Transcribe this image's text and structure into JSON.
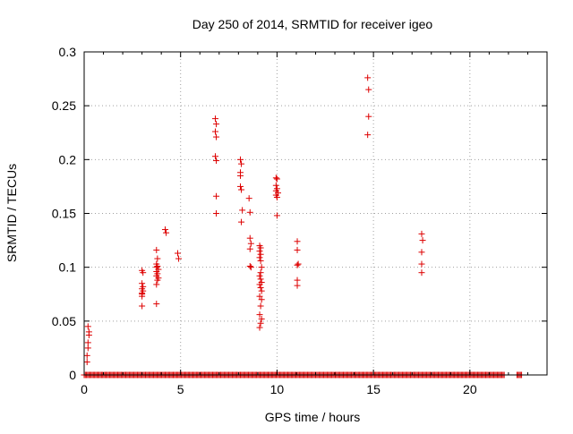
{
  "chart_data": {
    "type": "scatter",
    "title": "Day 250 of 2014, SRMTID for receiver igeo",
    "xlabel": "GPS time / hours",
    "ylabel": "SRMTID / TECUs",
    "xlim": [
      0,
      24
    ],
    "ylim": [
      0,
      0.3
    ],
    "x_ticks": [
      0,
      5,
      10,
      15,
      20
    ],
    "y_ticks": [
      0,
      0.05,
      0.1,
      0.15,
      0.2,
      0.25,
      0.3
    ],
    "x_tick_labels": [
      "0",
      "5",
      "10",
      "15",
      "20"
    ],
    "y_tick_labels": [
      "0",
      "0.05",
      "0.1",
      "0.15",
      "0.2",
      "0.25",
      "0.3"
    ],
    "grid": true,
    "marker": "+",
    "color": "#dd0000",
    "series": [
      {
        "name": "SRMTID",
        "points": [
          [
            0.2,
            0.045
          ],
          [
            0.25,
            0.04
          ],
          [
            0.25,
            0.037
          ],
          [
            0.2,
            0.03
          ],
          [
            0.2,
            0.025
          ],
          [
            0.15,
            0.018
          ],
          [
            0.15,
            0.012
          ],
          [
            3.0,
            0.097
          ],
          [
            3.05,
            0.095
          ],
          [
            3.0,
            0.085
          ],
          [
            3.05,
            0.082
          ],
          [
            3.0,
            0.08
          ],
          [
            3.05,
            0.078
          ],
          [
            3.0,
            0.076
          ],
          [
            3.0,
            0.075
          ],
          [
            3.0,
            0.073
          ],
          [
            3.0,
            0.064
          ],
          [
            3.75,
            0.116
          ],
          [
            3.8,
            0.108
          ],
          [
            3.75,
            0.103
          ],
          [
            3.8,
            0.101
          ],
          [
            3.75,
            0.1
          ],
          [
            3.85,
            0.098
          ],
          [
            3.75,
            0.096
          ],
          [
            3.8,
            0.094
          ],
          [
            3.75,
            0.092
          ],
          [
            3.85,
            0.09
          ],
          [
            3.8,
            0.088
          ],
          [
            3.75,
            0.084
          ],
          [
            3.75,
            0.066
          ],
          [
            4.2,
            0.135
          ],
          [
            4.25,
            0.132
          ],
          [
            4.85,
            0.113
          ],
          [
            4.9,
            0.108
          ],
          [
            6.8,
            0.238
          ],
          [
            6.85,
            0.233
          ],
          [
            6.8,
            0.226
          ],
          [
            6.85,
            0.221
          ],
          [
            6.8,
            0.203
          ],
          [
            6.85,
            0.199
          ],
          [
            6.85,
            0.166
          ],
          [
            6.85,
            0.15
          ],
          [
            8.1,
            0.2
          ],
          [
            8.15,
            0.196
          ],
          [
            8.1,
            0.188
          ],
          [
            8.1,
            0.185
          ],
          [
            8.1,
            0.175
          ],
          [
            8.15,
            0.172
          ],
          [
            8.2,
            0.153
          ],
          [
            8.15,
            0.142
          ],
          [
            8.55,
            0.164
          ],
          [
            8.6,
            0.151
          ],
          [
            8.6,
            0.127
          ],
          [
            8.65,
            0.122
          ],
          [
            8.6,
            0.117
          ],
          [
            8.6,
            0.101
          ],
          [
            8.65,
            0.1
          ],
          [
            9.1,
            0.12
          ],
          [
            9.15,
            0.118
          ],
          [
            9.1,
            0.115
          ],
          [
            9.15,
            0.112
          ],
          [
            9.1,
            0.109
          ],
          [
            9.15,
            0.106
          ],
          [
            9.2,
            0.1
          ],
          [
            9.15,
            0.095
          ],
          [
            9.1,
            0.092
          ],
          [
            9.15,
            0.089
          ],
          [
            9.2,
            0.086
          ],
          [
            9.1,
            0.084
          ],
          [
            9.15,
            0.081
          ],
          [
            9.2,
            0.078
          ],
          [
            9.1,
            0.073
          ],
          [
            9.2,
            0.07
          ],
          [
            9.15,
            0.064
          ],
          [
            9.1,
            0.056
          ],
          [
            9.2,
            0.052
          ],
          [
            9.15,
            0.048
          ],
          [
            9.1,
            0.044
          ],
          [
            9.95,
            0.183
          ],
          [
            10.0,
            0.182
          ],
          [
            9.95,
            0.176
          ],
          [
            10.0,
            0.173
          ],
          [
            9.95,
            0.171
          ],
          [
            10.05,
            0.169
          ],
          [
            9.95,
            0.167
          ],
          [
            10.0,
            0.165
          ],
          [
            10.0,
            0.148
          ],
          [
            11.05,
            0.124
          ],
          [
            11.05,
            0.116
          ],
          [
            11.1,
            0.103
          ],
          [
            11.05,
            0.102
          ],
          [
            11.05,
            0.088
          ],
          [
            11.05,
            0.083
          ],
          [
            14.7,
            0.276
          ],
          [
            14.75,
            0.265
          ],
          [
            14.75,
            0.24
          ],
          [
            14.7,
            0.223
          ],
          [
            17.5,
            0.131
          ],
          [
            17.55,
            0.125
          ],
          [
            17.5,
            0.114
          ],
          [
            17.5,
            0.103
          ],
          [
            17.5,
            0.095
          ]
        ]
      }
    ],
    "zero_row": {
      "y": 0,
      "x_start": 0.0,
      "x_end": 22.7,
      "gaps": [
        [
          21.8,
          22.4
        ]
      ]
    }
  }
}
